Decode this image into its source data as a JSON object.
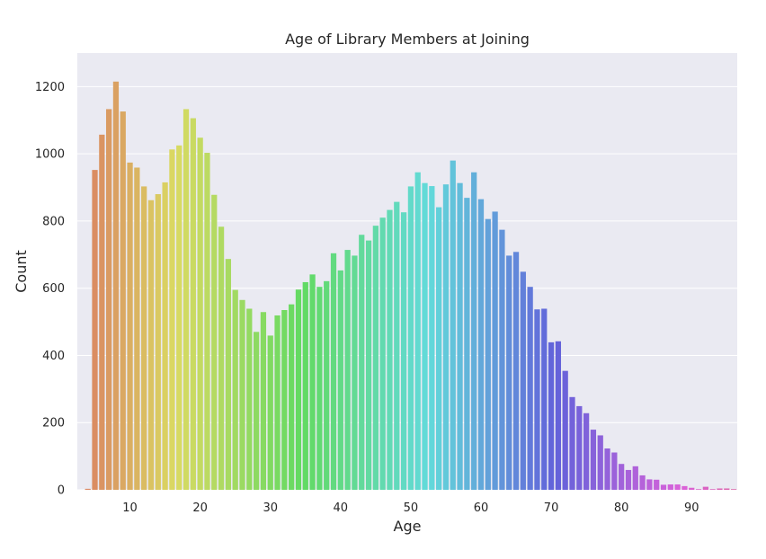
{
  "chart_data": {
    "type": "bar",
    "title": "Age of Library Members at Joining",
    "xlabel": "Age",
    "ylabel": "Count",
    "ylim": [
      0,
      1300
    ],
    "yticks": [
      0,
      200,
      400,
      600,
      800,
      1000,
      1200
    ],
    "xticks": [
      10,
      20,
      30,
      40,
      50,
      60,
      70,
      80,
      90
    ],
    "grid": true,
    "background": "#eaeaf2",
    "x": [
      3,
      4,
      5,
      6,
      7,
      8,
      9,
      10,
      11,
      12,
      13,
      14,
      15,
      16,
      17,
      18,
      19,
      20,
      21,
      22,
      23,
      24,
      25,
      26,
      27,
      28,
      29,
      30,
      31,
      32,
      33,
      34,
      35,
      36,
      37,
      38,
      39,
      40,
      41,
      42,
      43,
      44,
      45,
      46,
      47,
      48,
      49,
      50,
      51,
      52,
      53,
      54,
      55,
      56,
      57,
      58,
      59,
      60,
      61,
      62,
      63,
      64,
      65,
      66,
      67,
      68,
      69,
      70,
      71,
      72,
      73,
      74,
      75,
      76,
      77,
      78,
      79,
      80,
      81,
      82,
      83,
      84,
      85,
      86,
      87,
      88,
      89,
      90,
      91,
      92,
      93,
      94,
      95,
      96
    ],
    "values": [
      0,
      3,
      952,
      1057,
      1133,
      1215,
      1126,
      974,
      959,
      903,
      862,
      880,
      915,
      1013,
      1025,
      1133,
      1106,
      1048,
      1003,
      878,
      783,
      687,
      595,
      565,
      539,
      470,
      529,
      459,
      519,
      535,
      552,
      596,
      618,
      641,
      604,
      621,
      704,
      653,
      714,
      697,
      759,
      742,
      786,
      810,
      833,
      857,
      826,
      903,
      945,
      913,
      904,
      841,
      909,
      980,
      913,
      869,
      945,
      865,
      806,
      828,
      774,
      697,
      708,
      649,
      604,
      537,
      539,
      439,
      442,
      354,
      276,
      249,
      228,
      179,
      162,
      123,
      111,
      77,
      59,
      70,
      43,
      31,
      30,
      15,
      16,
      16,
      11,
      6,
      2,
      9,
      2,
      4,
      4,
      2
    ]
  }
}
